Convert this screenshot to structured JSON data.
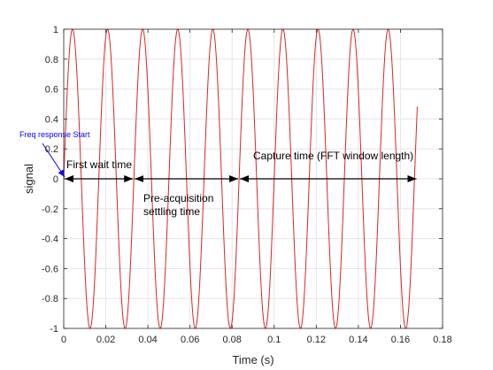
{
  "chart_data": {
    "type": "line",
    "xlabel": "Time (s)",
    "ylabel": "signal",
    "xlim": [
      0,
      0.18
    ],
    "ylim": [
      -1,
      1
    ],
    "x_ticks": [
      0,
      0.02,
      0.04,
      0.06,
      0.08,
      0.1,
      0.12,
      0.14,
      0.16,
      0.18
    ],
    "x_tick_labels": [
      "0",
      "0.02",
      "0.04",
      "0.06",
      "0.08",
      "0.1",
      "0.12",
      "0.14",
      "0.16",
      "0.18"
    ],
    "y_ticks": [
      -1,
      -0.8,
      -0.6,
      -0.4,
      -0.2,
      0,
      0.2,
      0.4,
      0.6,
      0.8,
      1
    ],
    "y_tick_labels": [
      "-1",
      "-0.8",
      "-0.6",
      "-0.4",
      "-0.2",
      "0",
      "0.2",
      "0.4",
      "0.6",
      "0.8",
      "1"
    ],
    "grid": true,
    "series": [
      {
        "color": "#d62728",
        "function": "sine",
        "amplitude": 1,
        "frequency_hz": 60,
        "x_range": [
          0,
          0.168
        ]
      }
    ],
    "annotations": [
      {
        "text": "Freq response Start",
        "color": "#0000ff",
        "arrow_to": [
          0,
          0
        ]
      },
      {
        "text": "First wait time",
        "span": [
          0,
          0.0333
        ]
      },
      {
        "text": "Pre-acquisition settling time",
        "lines": [
          "Pre-acquisition",
          "settling time"
        ],
        "span": [
          0.0333,
          0.0833
        ]
      },
      {
        "text": "Capture time (FFT window length)",
        "span": [
          0.0833,
          0.168
        ]
      }
    ]
  }
}
